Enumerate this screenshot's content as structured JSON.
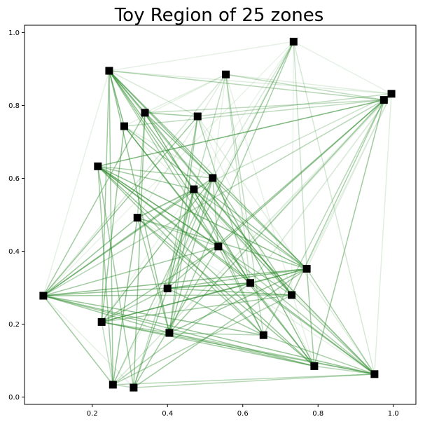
{
  "chart_data": {
    "type": "scatter",
    "title": "Toy Region of 25 zones",
    "xlabel": "",
    "ylabel": "",
    "xlim": [
      0.02,
      1.06
    ],
    "ylim": [
      -0.02,
      1.02
    ],
    "xticks": [
      0.2,
      0.4,
      0.6,
      0.8,
      1.0
    ],
    "yticks": [
      0.0,
      0.2,
      0.4,
      0.6,
      0.8,
      1.0
    ],
    "xtick_labels": [
      "0.2",
      "0.4",
      "0.6",
      "0.8",
      "1.0"
    ],
    "ytick_labels": [
      "0.0",
      "0.2",
      "0.4",
      "0.6",
      "0.8",
      "1.0"
    ],
    "grid": false,
    "marker": "square",
    "marker_color": "#000000",
    "edge_color": "#2e8b2e",
    "points": [
      {
        "x": 0.245,
        "y": 0.895
      },
      {
        "x": 0.555,
        "y": 0.885
      },
      {
        "x": 0.735,
        "y": 0.975
      },
      {
        "x": 0.975,
        "y": 0.815
      },
      {
        "x": 0.995,
        "y": 0.832
      },
      {
        "x": 0.34,
        "y": 0.78
      },
      {
        "x": 0.285,
        "y": 0.743
      },
      {
        "x": 0.48,
        "y": 0.77
      },
      {
        "x": 0.215,
        "y": 0.633
      },
      {
        "x": 0.52,
        "y": 0.601
      },
      {
        "x": 0.47,
        "y": 0.57
      },
      {
        "x": 0.32,
        "y": 0.492
      },
      {
        "x": 0.535,
        "y": 0.413
      },
      {
        "x": 0.77,
        "y": 0.352
      },
      {
        "x": 0.62,
        "y": 0.313
      },
      {
        "x": 0.4,
        "y": 0.298
      },
      {
        "x": 0.07,
        "y": 0.278
      },
      {
        "x": 0.73,
        "y": 0.28
      },
      {
        "x": 0.225,
        "y": 0.206
      },
      {
        "x": 0.405,
        "y": 0.176
      },
      {
        "x": 0.655,
        "y": 0.17
      },
      {
        "x": 0.79,
        "y": 0.085
      },
      {
        "x": 0.95,
        "y": 0.063
      },
      {
        "x": 0.255,
        "y": 0.034
      },
      {
        "x": 0.31,
        "y": 0.026
      }
    ],
    "edges": [
      [
        0,
        5,
        0.6
      ],
      [
        0,
        6,
        0.6
      ],
      [
        0,
        10,
        0.55
      ],
      [
        0,
        13,
        0.5
      ],
      [
        0,
        14,
        0.5
      ],
      [
        0,
        9,
        0.5
      ],
      [
        0,
        23,
        0.45
      ],
      [
        0,
        18,
        0.45
      ],
      [
        0,
        3,
        0.35
      ],
      [
        0,
        12,
        0.4
      ],
      [
        0,
        19,
        0.5
      ],
      [
        0,
        17,
        0.4
      ],
      [
        1,
        20,
        0.3
      ],
      [
        1,
        14,
        0.25
      ],
      [
        1,
        3,
        0.3
      ],
      [
        1,
        15,
        0.3
      ],
      [
        1,
        16,
        0.2
      ],
      [
        2,
        15,
        0.45
      ],
      [
        2,
        19,
        0.4
      ],
      [
        2,
        13,
        0.25
      ],
      [
        2,
        22,
        0.2
      ],
      [
        2,
        9,
        0.2
      ],
      [
        3,
        8,
        0.45
      ],
      [
        3,
        12,
        0.5
      ],
      [
        3,
        15,
        0.45
      ],
      [
        3,
        16,
        0.35
      ],
      [
        3,
        17,
        0.4
      ],
      [
        3,
        21,
        0.45
      ],
      [
        3,
        20,
        0.35
      ],
      [
        3,
        6,
        0.3
      ],
      [
        3,
        19,
        0.4
      ],
      [
        3,
        5,
        0.3
      ],
      [
        4,
        7,
        0.3
      ],
      [
        4,
        11,
        0.25
      ],
      [
        4,
        14,
        0.2
      ],
      [
        5,
        7,
        0.45
      ],
      [
        5,
        14,
        0.6
      ],
      [
        5,
        17,
        0.5
      ],
      [
        5,
        13,
        0.45
      ],
      [
        5,
        24,
        0.5
      ],
      [
        5,
        16,
        0.45
      ],
      [
        5,
        11,
        0.35
      ],
      [
        6,
        21,
        0.55
      ],
      [
        6,
        13,
        0.5
      ],
      [
        6,
        18,
        0.5
      ],
      [
        6,
        12,
        0.45
      ],
      [
        7,
        16,
        0.45
      ],
      [
        7,
        19,
        0.45
      ],
      [
        7,
        15,
        0.4
      ],
      [
        7,
        14,
        0.4
      ],
      [
        8,
        13,
        0.55
      ],
      [
        8,
        22,
        0.5
      ],
      [
        8,
        20,
        0.45
      ],
      [
        8,
        21,
        0.5
      ],
      [
        8,
        12,
        0.5
      ],
      [
        8,
        14,
        0.5
      ],
      [
        8,
        23,
        0.45
      ],
      [
        8,
        24,
        0.45
      ],
      [
        8,
        17,
        0.45
      ],
      [
        8,
        9,
        0.4
      ],
      [
        8,
        10,
        0.45
      ],
      [
        8,
        3,
        0.3
      ],
      [
        9,
        21,
        0.55
      ],
      [
        9,
        18,
        0.5
      ],
      [
        9,
        16,
        0.5
      ],
      [
        9,
        19,
        0.45
      ],
      [
        9,
        17,
        0.45
      ],
      [
        9,
        15,
        0.4
      ],
      [
        9,
        23,
        0.4
      ],
      [
        9,
        12,
        0.4
      ],
      [
        10,
        22,
        0.55
      ],
      [
        10,
        17,
        0.5
      ],
      [
        10,
        15,
        0.45
      ],
      [
        10,
        11,
        0.45
      ],
      [
        10,
        16,
        0.45
      ],
      [
        10,
        13,
        0.4
      ],
      [
        10,
        24,
        0.35
      ],
      [
        10,
        19,
        0.4
      ],
      [
        10,
        20,
        0.4
      ],
      [
        11,
        23,
        0.5
      ],
      [
        11,
        16,
        0.5
      ],
      [
        11,
        21,
        0.5
      ],
      [
        11,
        13,
        0.45
      ],
      [
        11,
        20,
        0.45
      ],
      [
        11,
        19,
        0.45
      ],
      [
        11,
        12,
        0.35
      ],
      [
        12,
        16,
        0.45
      ],
      [
        12,
        24,
        0.45
      ],
      [
        12,
        22,
        0.4
      ],
      [
        12,
        18,
        0.45
      ],
      [
        12,
        20,
        0.45
      ],
      [
        13,
        16,
        0.55
      ],
      [
        13,
        18,
        0.55
      ],
      [
        13,
        15,
        0.5
      ],
      [
        13,
        24,
        0.45
      ],
      [
        13,
        19,
        0.5
      ],
      [
        13,
        21,
        0.45
      ],
      [
        13,
        14,
        0.4
      ],
      [
        13,
        22,
        0.4
      ],
      [
        14,
        18,
        0.5
      ],
      [
        14,
        16,
        0.5
      ],
      [
        14,
        21,
        0.45
      ],
      [
        14,
        22,
        0.45
      ],
      [
        14,
        15,
        0.4
      ],
      [
        14,
        23,
        0.4
      ],
      [
        15,
        17,
        0.5
      ],
      [
        15,
        20,
        0.45
      ],
      [
        15,
        24,
        0.45
      ],
      [
        15,
        18,
        0.4
      ],
      [
        16,
        22,
        0.5
      ],
      [
        16,
        20,
        0.5
      ],
      [
        16,
        21,
        0.45
      ],
      [
        16,
        23,
        0.45
      ],
      [
        16,
        17,
        0.45
      ],
      [
        16,
        19,
        0.45
      ],
      [
        17,
        18,
        0.45
      ],
      [
        17,
        23,
        0.4
      ],
      [
        17,
        22,
        0.4
      ],
      [
        18,
        22,
        0.45
      ],
      [
        18,
        21,
        0.45
      ],
      [
        18,
        19,
        0.4
      ],
      [
        18,
        23,
        0.3
      ],
      [
        19,
        22,
        0.4
      ],
      [
        19,
        21,
        0.4
      ],
      [
        19,
        20,
        0.35
      ],
      [
        20,
        22,
        0.4
      ],
      [
        21,
        22,
        0.35
      ],
      [
        22,
        23,
        0.35
      ],
      [
        22,
        24,
        0.35
      ],
      [
        23,
        24,
        0.3
      ],
      [
        0,
        2,
        0.12
      ],
      [
        0,
        4,
        0.15
      ],
      [
        0,
        7,
        0.18
      ],
      [
        1,
        4,
        0.15
      ],
      [
        1,
        9,
        0.12
      ],
      [
        1,
        11,
        0.15
      ],
      [
        1,
        21,
        0.12
      ],
      [
        2,
        4,
        0.12
      ],
      [
        2,
        23,
        0.1
      ],
      [
        2,
        18,
        0.1
      ],
      [
        4,
        13,
        0.15
      ],
      [
        4,
        22,
        0.15
      ],
      [
        4,
        17,
        0.12
      ],
      [
        4,
        19,
        0.12
      ],
      [
        4,
        23,
        0.1
      ],
      [
        5,
        9,
        0.15
      ],
      [
        6,
        22,
        0.12
      ],
      [
        7,
        22,
        0.15
      ],
      [
        7,
        21,
        0.12
      ],
      [
        0,
        16,
        0.12
      ],
      [
        2,
        16,
        0.1
      ],
      [
        1,
        5,
        0.15
      ],
      [
        1,
        6,
        0.12
      ],
      [
        6,
        9,
        0.15
      ],
      [
        16,
        24,
        0.12
      ],
      [
        11,
        22,
        0.12
      ],
      [
        3,
        23,
        0.12
      ],
      [
        2,
        17,
        0.1
      ]
    ]
  }
}
